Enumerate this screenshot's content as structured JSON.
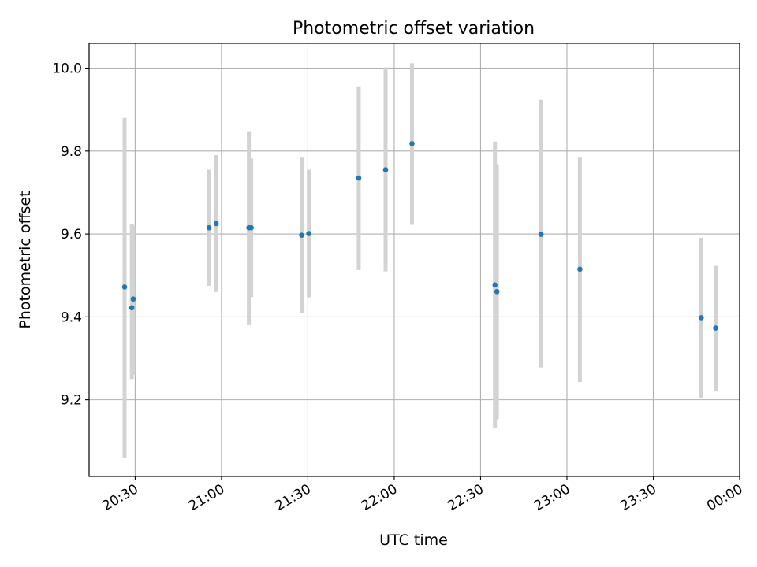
{
  "chart_data": {
    "type": "scatter",
    "title": "Photometric offset variation",
    "xlabel": "UTC time",
    "ylabel": "Photometric offset",
    "x_format": "HH:MM",
    "xlim": [
      "20:14",
      "00:00"
    ],
    "ylim": [
      9.015,
      10.06
    ],
    "x_ticks": [
      "20:30",
      "21:00",
      "21:30",
      "22:00",
      "22:30",
      "23:00",
      "23:30",
      "00:00"
    ],
    "y_ticks": [
      9.2,
      9.4,
      9.6,
      9.8,
      10.0
    ],
    "y_tick_labels": [
      "9.2",
      "9.4",
      "9.6",
      "9.8",
      "10.0"
    ],
    "grid": true,
    "marker_color": "#1f77b4",
    "errorbar_color": "#d3d3d3",
    "series": [
      {
        "points": [
          {
            "x": "20:26:20",
            "y": 9.472,
            "ylow": 9.06,
            "yhigh": 9.88
          },
          {
            "x": "20:28:50",
            "y": 9.422,
            "ylow": 9.25,
            "yhigh": 9.625
          },
          {
            "x": "20:29:20",
            "y": 9.443,
            "ylow": 9.26,
            "yhigh": 9.62
          },
          {
            "x": "20:55:40",
            "y": 9.615,
            "ylow": 9.475,
            "yhigh": 9.755
          },
          {
            "x": "20:58:10",
            "y": 9.625,
            "ylow": 9.46,
            "yhigh": 9.79
          },
          {
            "x": "21:09:30",
            "y": 9.615,
            "ylow": 9.38,
            "yhigh": 9.848
          },
          {
            "x": "21:10:20",
            "y": 9.615,
            "ylow": 9.448,
            "yhigh": 9.782
          },
          {
            "x": "21:27:50",
            "y": 9.597,
            "ylow": 9.41,
            "yhigh": 9.786
          },
          {
            "x": "21:30:20",
            "y": 9.601,
            "ylow": 9.447,
            "yhigh": 9.755
          },
          {
            "x": "21:47:40",
            "y": 9.735,
            "ylow": 9.513,
            "yhigh": 9.956
          },
          {
            "x": "21:57:00",
            "y": 9.755,
            "ylow": 9.51,
            "yhigh": 10.002
          },
          {
            "x": "22:06:10",
            "y": 9.818,
            "ylow": 9.622,
            "yhigh": 10.012
          },
          {
            "x": "22:35:00",
            "y": 9.477,
            "ylow": 9.133,
            "yhigh": 9.823
          },
          {
            "x": "22:35:40",
            "y": 9.461,
            "ylow": 9.153,
            "yhigh": 9.768
          },
          {
            "x": "22:51:00",
            "y": 9.599,
            "ylow": 9.278,
            "yhigh": 9.924
          },
          {
            "x": "23:04:30",
            "y": 9.515,
            "ylow": 9.243,
            "yhigh": 9.786
          },
          {
            "x": "23:46:40",
            "y": 9.398,
            "ylow": 9.204,
            "yhigh": 9.591
          },
          {
            "x": "23:51:40",
            "y": 9.373,
            "ylow": 9.22,
            "yhigh": 9.523
          }
        ]
      }
    ]
  }
}
